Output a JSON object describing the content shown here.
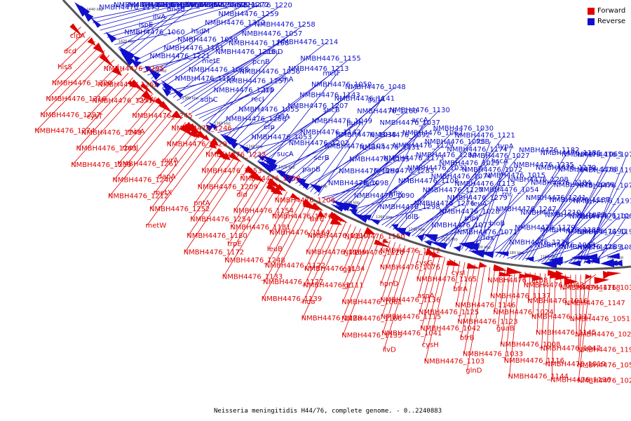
{
  "caption": "Neisseria meningitidis H44/76, complete genome. - 0..2240883",
  "legend": [
    {
      "label": "Forward",
      "color": "#e00000"
    },
    {
      "label": "Reverse",
      "color": "#1010cc"
    }
  ],
  "colors": {
    "forward": "#e00000",
    "reverse": "#1010cc",
    "backbone": "#555555"
  },
  "ticks": [
    "1440 kbp",
    "1420 kbp",
    "1400 kbp",
    "1380 kbp",
    "1360 kbp",
    "1340 kbp",
    "1320 kbp",
    "1300 kbp",
    "1280 kbp",
    "1260 kbp",
    "1240 kbp",
    "1220 kbp",
    "1200 kbp",
    "1180 kbp",
    "1160 kbp",
    "1140 kbp",
    "1120 kbp"
  ],
  "reverse_labels": [
    "NMBH4476_1275",
    "NMBH4476_1226",
    "NMBH4476_1163",
    "NMBH4476_1063",
    "NMBH4476_1273",
    "NMBH4476_1225",
    "NMBH4476_1162",
    "NMBH4476_1060",
    "ispE",
    "ilvA",
    "dnaB",
    "pilV",
    "NMBH4476_1321",
    "NMBH4476_1272",
    "NMBH4476_1221",
    "NMBH4476_1161",
    "NMBH4476_1059",
    "hsdM",
    "NMBH4476_1312",
    "NMBH4476_1259",
    "NMBH4476_1220",
    "NMBH4476_1159",
    "NMBH4476_1058",
    "metE",
    "NMBH4476_1216",
    "NMBH4476_1158",
    "NMBH4476_1057",
    "NMBH4476_1258",
    "sdhC",
    "NMBH4476_1215",
    "NMBH4476_1157",
    "NMBH4476_1056",
    "pcnB",
    "sdhD",
    "NMBH4476_1214",
    "NMBH4476_1156",
    "NMBH4476_1055",
    "recJ",
    "pip",
    "sdhA",
    "NMBH4476_1213",
    "NMBH4476_1155",
    "NMBH4476_1053",
    "efp",
    "gltA",
    "NMBH4476_1207",
    "NMBH4476_1143",
    "NMBH4476_1050",
    "metF",
    "sucA",
    "NMBH4476_1202",
    "NMBH4476_1142",
    "NMBH4476_1049",
    "sucB",
    "NMBH4476_1141",
    "NMBH4476_1048",
    "panB",
    "serB",
    "NMBH4476_1105",
    "NMBH4476_1038",
    "purH",
    "NMBH4476_1160",
    "gshA",
    "NMBH4476_1098",
    "NMBH4476_1290",
    "NMBH4476_1185",
    "NMBH4476_1131",
    "NMBH4476_1092",
    "NMBH4476_1037",
    "NMBH4476_1130",
    "NMBH4476_1090",
    "iscX",
    "NMBH4476_1283",
    "NMBH4476_1173",
    "NMBH4476_1129",
    "NMBH4476_1062",
    "accA",
    "NMBH4476_1298",
    "hflX",
    "NMBH4476_1108",
    "NMBH4476_1031",
    "NMBH4476_1284",
    "NMBH4476_1075",
    "NMBH4476_1030",
    "lolB",
    "NMBH4476_1276",
    "NMBH4476_1127",
    "NMBH4476_1074",
    "NMBH4476_1029",
    "NMBH4476_1174",
    "NMBH4476_1121",
    "NMBH4476_1073",
    "NMBH4476_1028",
    "NMBH4476_1279",
    "NMBH4476_1113",
    "NMBH4476_1072",
    "NMBH4476_1027",
    "folB",
    "NMBH4476_1071",
    "rnpI",
    "leuA",
    "NMBH4476_1054",
    "NMBH4476_1015",
    "hscA",
    "typA",
    "fdx",
    "bioB",
    "NMBH4476_1247",
    "rnr",
    "NMBH4476_1208",
    "NMBH4476_1235",
    "NMBH4476_1182",
    "NMBH4476_1236",
    "NMBH4476_1179",
    "NMBH4476_1210",
    "NMBH4476_1241",
    "NMBH4476_1184",
    "NMBH4476_1170",
    "NMBH4476_1186",
    "NMBH4476_1064",
    "NMBH4476_1183",
    "NMBH4476_1077",
    "NMBH4476_1187",
    "NMBH4476_1066",
    "NMBH4476_1188",
    "NMBH4476_1065",
    "NMBH4476_1189",
    "NMBH4476_1190",
    "NMBH4476_1101",
    "NMBH4476_1191",
    "NMBH4476_1078",
    "NMBH4476_1193",
    "NMBH4476_1079",
    "NMBH4476_1085",
    "NMBH4476_1198",
    "NMBH4476_1067"
  ],
  "forward_labels": [
    "clpA",
    "dcd",
    "hisS",
    "NMBH4476_1320",
    "NMBH4476_1316",
    "NMBH4476_1297",
    "NMBH4476_1274",
    "NMBH4476_1295",
    "NMBH4476_1262",
    "NMBH4476_1251",
    "cysT",
    "NMBH4476_1243",
    "NMBH4476_1263",
    "NMBH4476_1239",
    "cysW",
    "NMBH4476_1245",
    "miaA",
    "rpmJ",
    "NMBH4476_1261",
    "NMBH4476_1240",
    "NMBH4476_1212",
    "NMBH4476_1246",
    "NMBH4476_1229",
    "uvrA",
    "dapA",
    "metX",
    "NMBH4476_1252",
    "metW",
    "NMBH4476_1233",
    "NMBH4476_1253",
    "NMBH4476_1209",
    "pntA",
    "NMBH4476_1254",
    "NMBH4476_1180",
    "NMBH4476_1172",
    "NMBH4476_1238",
    "dld",
    "NMBH4476_1154",
    "NMBH4476_1181",
    "trpE",
    "NMBH4476_1248",
    "NMBH4476_1133",
    "NMBH4476_1206",
    "NMBH4476_1176",
    "NMBH4476_1164",
    "leuB",
    "NMBH4476_1122",
    "NMBH4476_1177",
    "NMBH4476_1139",
    "thrC",
    "NMBH4476_1110",
    "NMBH4476_1169",
    "NMBH4476_1134",
    "NMBH4476_1111",
    "hda",
    "NMBH4476_1178",
    "NMBH4476_1150",
    "NMBH4476_1126",
    "ggt",
    "lgt",
    "NMBH4476_1061",
    "NMBH4476_1166",
    "NMBH4476_1135",
    "NMBH4476_1112",
    "NMBH4476_1076",
    "hpnD",
    "NMBH4476_1136",
    "NMBH4476_1115",
    "NMBH4476_1041",
    "ilvD",
    "cysG",
    "NMBH4476_1165",
    "aspA",
    "NMBH4476_1125",
    "NMBH4476_1042",
    "cysH",
    "NMBH4476_1103",
    "cysI",
    "bfrA",
    "NMBH4476_1146",
    "NMBH4476_1123",
    "bfrB",
    "NMBH4476_1033",
    "glnD",
    "NMBH4476_1168",
    "NMBH4476_1137",
    "NMBH4476_1024",
    "guaB",
    "NMBH4476_1008",
    "NMBH4476_1116",
    "NMBH4476_1144",
    "NMBH4476_1043",
    "NMBH4476_1016",
    "NMBH4476_1117",
    "NMBH4476_1145",
    "NMBH4476_1047",
    "NMBH4476_1019",
    "NMBH4476_1196",
    "NMBH4476_1118",
    "NMBH4476_1147",
    "NMBH4476_1051",
    "NMBH4476_1020",
    "NMBH4476_1197",
    "NMBH4476_1052",
    "NMBH4476_1021",
    "NMBH4476_1035"
  ]
}
